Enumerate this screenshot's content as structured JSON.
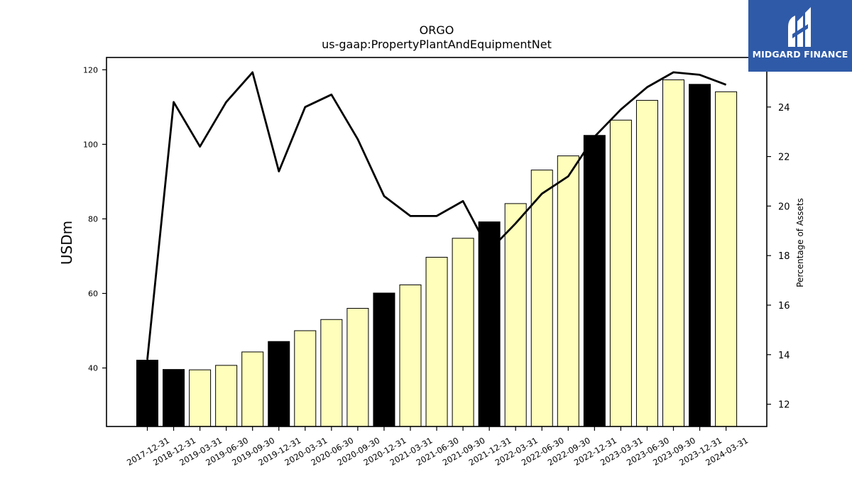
{
  "logo": {
    "text": "MIDGARD FINANCE"
  },
  "chart_data": {
    "type": "bar",
    "title": "ORGO",
    "subtitle": "us-gaap:PropertyPlantAndEquipmentNet",
    "ylabel": "USDm",
    "y2label": "Percentage of Assets",
    "ylim": [
      24.3,
      123.3
    ],
    "y2lim": [
      11.1,
      26.0
    ],
    "yticks": [
      40,
      60,
      80,
      100,
      120
    ],
    "y2ticks": [
      12,
      14,
      16,
      18,
      20,
      22,
      24
    ],
    "categories": [
      "2017-12-31",
      "2018-12-31",
      "2019-03-31",
      "2019-06-30",
      "2019-09-30",
      "2019-12-31",
      "2020-03-31",
      "2020-06-30",
      "2020-09-30",
      "2020-12-31",
      "2021-03-31",
      "2021-06-30",
      "2021-09-30",
      "2021-12-31",
      "2022-03-31",
      "2022-06-30",
      "2022-09-30",
      "2022-12-31",
      "2023-03-31",
      "2023-06-30",
      "2023-09-30",
      "2023-12-31",
      "2024-03-31"
    ],
    "series": [
      {
        "values": [
          42.1,
          39.6,
          39.5,
          40.7,
          44.3,
          47.1,
          50.0,
          53.0,
          56.0,
          60.1,
          62.3,
          69.7,
          74.8,
          79.2,
          84.1,
          93.1,
          96.9,
          102.4,
          106.5,
          111.8,
          117.3,
          116.1,
          114.1
        ],
        "annual": [
          true,
          true,
          false,
          false,
          false,
          true,
          false,
          false,
          false,
          true,
          false,
          false,
          false,
          true,
          false,
          false,
          false,
          true,
          false,
          false,
          false,
          true,
          false
        ]
      },
      {
        "values": [
          13.8,
          24.2,
          22.4,
          24.2,
          25.4,
          21.4,
          24.0,
          24.5,
          22.7,
          20.4,
          19.6,
          19.6,
          20.2,
          18.2,
          19.3,
          20.5,
          21.2,
          22.8,
          23.9,
          24.8,
          25.4,
          25.3,
          24.9
        ]
      }
    ],
    "colors": {
      "annual": "#000000",
      "quarter": "#ffffbb",
      "line": "#000000"
    },
    "grid": false
  }
}
